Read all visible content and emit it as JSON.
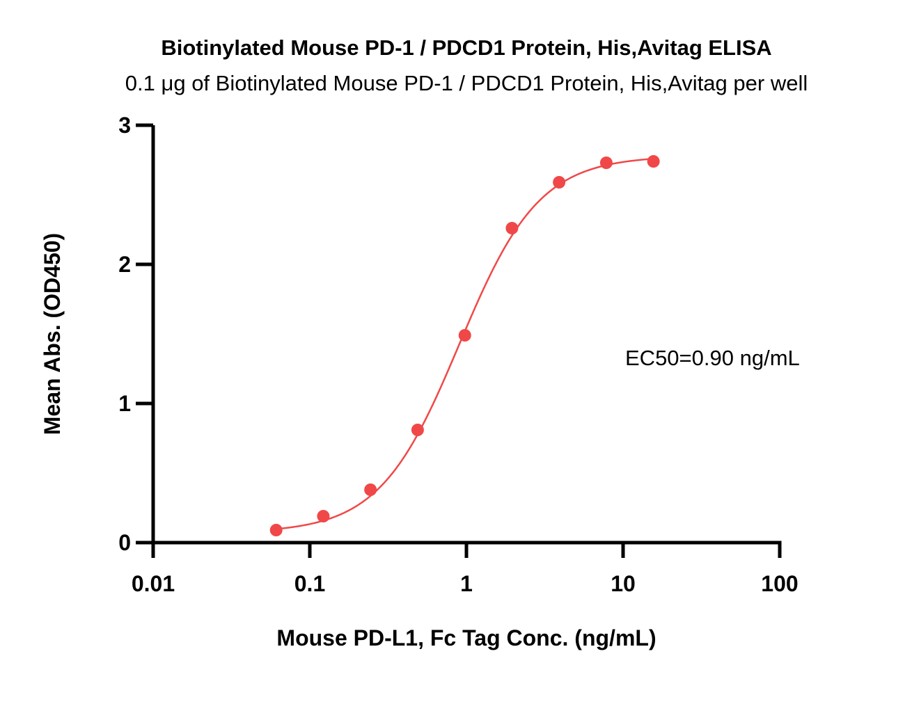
{
  "chart_data": {
    "type": "scatter",
    "title": "Biotinylated Mouse PD-1 / PDCD1 Protein, His,Avitag ELISA",
    "subtitle": "0.1 μg of Biotinylated Mouse PD-1 / PDCD1 Protein, His,Avitag per well",
    "xlabel": "Mouse PD-L1, Fc Tag Conc. (ng/mL)",
    "ylabel": "Mean Abs. (OD450)",
    "x_scale": "log",
    "xlim": [
      0.01,
      100
    ],
    "ylim": [
      0,
      3
    ],
    "x_ticks": [
      0.01,
      0.1,
      1,
      10,
      100
    ],
    "x_tick_labels": [
      "0.01",
      "0.1",
      "1",
      "10",
      "100"
    ],
    "y_ticks": [
      0,
      1,
      2,
      3
    ],
    "y_tick_labels": [
      "0",
      "1",
      "2",
      "3"
    ],
    "annotation": "EC50=0.90 ng/mL",
    "color": "#F04848",
    "grid": false,
    "series": [
      {
        "x": [
          0.061,
          0.122,
          0.244,
          0.488,
          0.977,
          1.953,
          3.906,
          7.813,
          15.625
        ],
        "y": [
          0.09,
          0.19,
          0.38,
          0.81,
          1.49,
          2.26,
          2.59,
          2.73,
          2.74
        ]
      }
    ],
    "fit_curve": {
      "model": "4PL",
      "bottom": 0.07,
      "top": 2.78,
      "ec50": 0.9,
      "hill": 1.7
    }
  }
}
